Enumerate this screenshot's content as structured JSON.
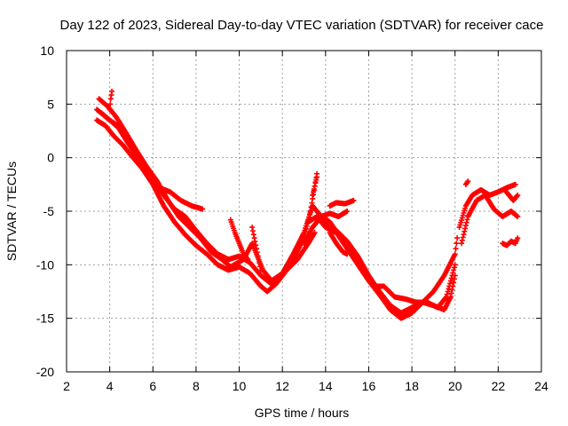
{
  "chart_data": {
    "type": "scatter",
    "title": "Day 122 of 2023, Sidereal Day-to-day VTEC variation (SDTVAR) for receiver cace",
    "xlabel": "GPS time / hours",
    "ylabel": "SDTVAR / TECUs",
    "xlim": [
      2,
      24
    ],
    "ylim": [
      -20,
      10
    ],
    "xticks": [
      2,
      4,
      6,
      8,
      10,
      12,
      14,
      16,
      18,
      20,
      22,
      24
    ],
    "yticks": [
      -20,
      -15,
      -10,
      -5,
      0,
      5,
      10
    ],
    "grid": true,
    "marker": "+",
    "color": "#ff0000",
    "series": [
      {
        "name": "track-1",
        "x": [
          3.4,
          3.8,
          4.2,
          4.6,
          5.0,
          5.5,
          6.0,
          6.5,
          7.0,
          7.5,
          8.0,
          8.5,
          9.0,
          9.5,
          10.0,
          10.5,
          11.0,
          11.3,
          11.7,
          12.2,
          12.7,
          13.2,
          13.5
        ],
        "y": [
          3.5,
          3.0,
          2.0,
          1.2,
          0.2,
          -1.0,
          -2.5,
          -4.5,
          -6.0,
          -7.2,
          -8.2,
          -9.0,
          -10.0,
          -10.5,
          -10.2,
          -10.8,
          -12.0,
          -12.5,
          -11.8,
          -10.5,
          -9.5,
          -8.0,
          -7.0
        ]
      },
      {
        "name": "track-2",
        "x": [
          3.4,
          3.7,
          4.0,
          4.5,
          5.0,
          5.5,
          6.0,
          6.5,
          7.0,
          7.5,
          8.0,
          8.5,
          9.0,
          9.5,
          10.0,
          10.5,
          11.0,
          11.5,
          12.0,
          12.5,
          13.0,
          13.3,
          13.6
        ],
        "y": [
          4.5,
          4.0,
          3.5,
          2.8,
          1.0,
          -0.5,
          -2.0,
          -3.5,
          -4.8,
          -5.5,
          -6.8,
          -8.0,
          -9.0,
          -9.5,
          -9.2,
          -9.8,
          -11.0,
          -11.8,
          -11.0,
          -9.5,
          -7.5,
          -5.0,
          -1.5
        ]
      },
      {
        "name": "track-3",
        "x": [
          3.5,
          3.9,
          4.3,
          4.7,
          5.2,
          5.7,
          6.2,
          6.7,
          7.2,
          7.7,
          8.2,
          8.7,
          9.2,
          9.6,
          10.2,
          10.6,
          11.1,
          11.5,
          12.0,
          12.5,
          13.0,
          13.4
        ],
        "y": [
          5.5,
          4.8,
          3.8,
          2.5,
          0.8,
          -0.8,
          -2.2,
          -4.0,
          -5.5,
          -6.5,
          -7.5,
          -8.8,
          -9.5,
          -10.2,
          -9.5,
          -8.0,
          -10.5,
          -11.5,
          -10.8,
          -9.0,
          -7.0,
          -4.5
        ]
      },
      {
        "name": "track-4",
        "x": [
          3.6,
          4.0,
          4.4,
          4.8,
          5.3,
          5.8,
          6.3,
          6.8,
          7.3,
          7.8,
          8.3
        ],
        "y": [
          4.2,
          3.5,
          2.8,
          1.5,
          0.0,
          -1.5,
          -2.8,
          -3.2,
          -4.0,
          -4.5,
          -4.8
        ]
      },
      {
        "name": "track-5",
        "x": [
          9.6,
          9.8,
          10.0,
          10.2,
          10.4
        ],
        "y": [
          -5.8,
          -7.0,
          -8.0,
          -9.0,
          -9.5
        ]
      },
      {
        "name": "track-6",
        "x": [
          10.6,
          10.7,
          10.8,
          10.9,
          11.0
        ],
        "y": [
          -6.5,
          -7.5,
          -8.5,
          -9.5,
          -10.5
        ]
      },
      {
        "name": "track-7",
        "x": [
          13.2,
          13.6,
          14.0,
          14.5,
          15.0,
          15.5,
          16.0,
          16.5,
          17.0,
          17.5,
          18.0,
          18.5,
          19.0,
          19.5,
          20.0,
          20.1
        ],
        "y": [
          -6.0,
          -5.5,
          -6.5,
          -7.0,
          -8.5,
          -10.0,
          -11.5,
          -12.8,
          -14.2,
          -15.0,
          -14.5,
          -13.5,
          -12.5,
          -11.0,
          -9.0,
          -7.5
        ]
      },
      {
        "name": "track-8",
        "x": [
          13.4,
          13.8,
          14.2,
          14.7,
          15.2,
          15.7,
          16.2,
          16.7,
          17.2,
          17.7,
          18.2,
          18.7,
          19.2,
          19.6,
          20.0
        ],
        "y": [
          -4.5,
          -5.5,
          -6.0,
          -7.5,
          -9.0,
          -10.5,
          -12.0,
          -12.0,
          -13.0,
          -13.2,
          -13.5,
          -13.5,
          -14.0,
          -13.0,
          -10.0
        ]
      },
      {
        "name": "track-9",
        "x": [
          13.6,
          14.0,
          14.5,
          15.0,
          15.5,
          16.0,
          16.5,
          17.0,
          17.5,
          18.0,
          18.5,
          19.0,
          19.5,
          19.8,
          20.0
        ],
        "y": [
          -5.0,
          -6.0,
          -6.8,
          -7.8,
          -9.2,
          -11.0,
          -12.5,
          -13.8,
          -14.5,
          -14.0,
          -13.5,
          -13.8,
          -14.2,
          -13.0,
          -11.0
        ]
      },
      {
        "name": "track-10",
        "x": [
          13.0,
          13.4,
          13.8,
          14.2,
          14.6,
          15.0
        ],
        "y": [
          -8.0,
          -6.5,
          -5.5,
          -5.2,
          -5.5,
          -5.0
        ]
      },
      {
        "name": "track-11",
        "x": [
          14.2,
          14.5,
          14.9,
          15.3
        ],
        "y": [
          -4.5,
          -4.2,
          -4.3,
          -4.0
        ]
      },
      {
        "name": "track-12",
        "x": [
          13.4,
          13.6
        ],
        "y": [
          -3.5,
          -1.8
        ]
      },
      {
        "name": "track-13",
        "x": [
          14.2,
          14.5,
          14.8,
          15.0
        ],
        "y": [
          -7.0,
          -8.0,
          -8.8,
          -9.0
        ]
      },
      {
        "name": "track-14",
        "x": [
          20.2,
          20.5,
          20.8,
          21.2,
          21.6,
          22.0,
          22.4,
          22.8
        ],
        "y": [
          -6.5,
          -4.5,
          -3.5,
          -3.0,
          -3.5,
          -3.2,
          -2.8,
          -2.5
        ]
      },
      {
        "name": "track-15",
        "x": [
          20.3,
          20.6,
          21.0,
          21.4,
          21.8,
          22.2,
          22.6,
          22.9
        ],
        "y": [
          -8.0,
          -5.5,
          -4.0,
          -3.5,
          -4.8,
          -5.5,
          -5.0,
          -5.5
        ]
      },
      {
        "name": "track-16",
        "x": [
          22.2,
          22.4,
          22.6,
          22.8,
          22.9
        ],
        "y": [
          -8.0,
          -8.2,
          -7.8,
          -8.0,
          -7.5
        ]
      },
      {
        "name": "track-17",
        "x": [
          22.3,
          22.5,
          22.7,
          22.9
        ],
        "y": [
          -3.0,
          -3.5,
          -4.0,
          -3.5
        ]
      },
      {
        "name": "track-18",
        "x": [
          20.5,
          20.6
        ],
        "y": [
          -2.5,
          -2.2
        ]
      },
      {
        "name": "track-19",
        "x": [
          4.0,
          4.05,
          4.1
        ],
        "y": [
          4.5,
          5.5,
          6.2
        ]
      }
    ]
  }
}
